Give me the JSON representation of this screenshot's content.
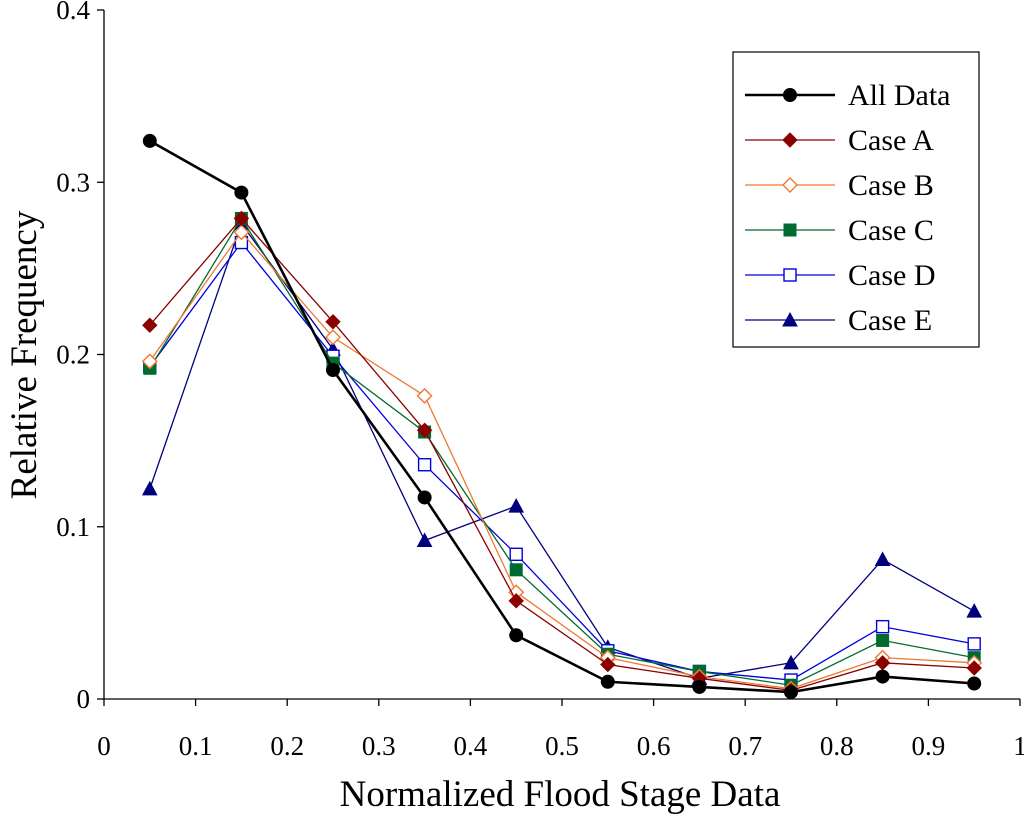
{
  "chart_data": {
    "type": "line",
    "title": "",
    "xlabel": "Normalized Flood Stage Data",
    "ylabel": "Relative Frequency",
    "xlim": [
      0,
      1
    ],
    "ylim": [
      0,
      0.4
    ],
    "xticks": [
      0,
      0.1,
      0.2,
      0.3,
      0.4,
      0.5,
      0.6,
      0.7,
      0.8,
      0.9,
      1
    ],
    "xtick_labels": [
      "0",
      "0.1",
      "0.2",
      "0.3",
      "0.4",
      "0.5",
      "0.6",
      "0.7",
      "0.8",
      "0.9",
      "1"
    ],
    "yticks": [
      0,
      0.1,
      0.2,
      0.3,
      0.4
    ],
    "ytick_labels": [
      "0",
      "0.1",
      "0.2",
      "0.3",
      "0.4"
    ],
    "grid": false,
    "legend_position": "top-right",
    "x": [
      0.05,
      0.15,
      0.25,
      0.35,
      0.45,
      0.55,
      0.65,
      0.75,
      0.85,
      0.95
    ],
    "series": [
      {
        "name": "All Data",
        "color": "#000000",
        "marker": "circle",
        "filled": true,
        "values": [
          0.324,
          0.294,
          0.191,
          0.117,
          0.037,
          0.01,
          0.007,
          0.004,
          0.013,
          0.009
        ]
      },
      {
        "name": "Case A",
        "color": "#8b0000",
        "marker": "diamond",
        "filled": true,
        "values": [
          0.217,
          0.279,
          0.219,
          0.156,
          0.057,
          0.02,
          0.012,
          0.005,
          0.021,
          0.018
        ]
      },
      {
        "name": "Case B",
        "color": "#f07830",
        "marker": "diamond",
        "filled": false,
        "values": [
          0.196,
          0.271,
          0.21,
          0.176,
          0.062,
          0.024,
          0.013,
          0.006,
          0.024,
          0.021
        ]
      },
      {
        "name": "Case C",
        "color": "#006b2e",
        "marker": "square",
        "filled": true,
        "values": [
          0.192,
          0.279,
          0.195,
          0.155,
          0.075,
          0.026,
          0.016,
          0.008,
          0.034,
          0.024
        ]
      },
      {
        "name": "Case D",
        "color": "#0000e0",
        "marker": "square",
        "filled": false,
        "values": [
          0.193,
          0.265,
          0.199,
          0.136,
          0.084,
          0.028,
          0.016,
          0.011,
          0.042,
          0.032
        ]
      },
      {
        "name": "Case E",
        "color": "#00007f",
        "marker": "triangle",
        "filled": true,
        "values": [
          0.122,
          0.276,
          0.203,
          0.092,
          0.112,
          0.03,
          0.012,
          0.021,
          0.081,
          0.051
        ]
      }
    ]
  }
}
